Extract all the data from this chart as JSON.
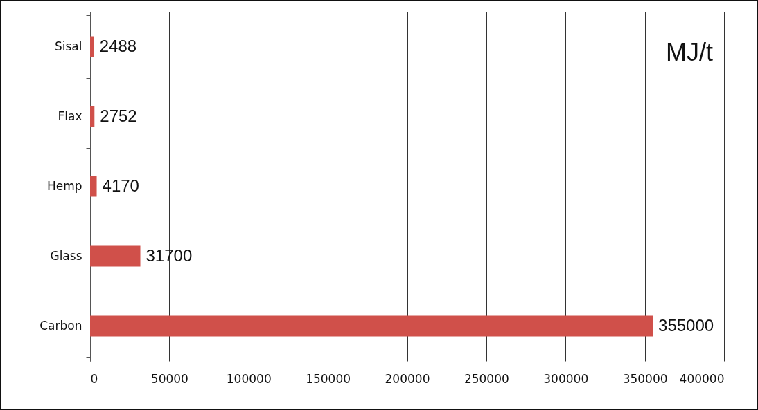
{
  "chart_data": {
    "type": "bar",
    "orientation": "horizontal",
    "categories": [
      "Sisal",
      "Flax",
      "Hemp",
      "Glass",
      "Carbon"
    ],
    "values": [
      2488,
      2752,
      4170,
      31700,
      355000
    ],
    "color": "#d0504a",
    "data_labels": true,
    "xlim": [
      0,
      400000
    ],
    "xticks": [
      0,
      50000,
      100000,
      150000,
      200000,
      250000,
      300000,
      350000,
      400000
    ],
    "grid": "x",
    "annotations": [
      "MJ/t"
    ]
  }
}
